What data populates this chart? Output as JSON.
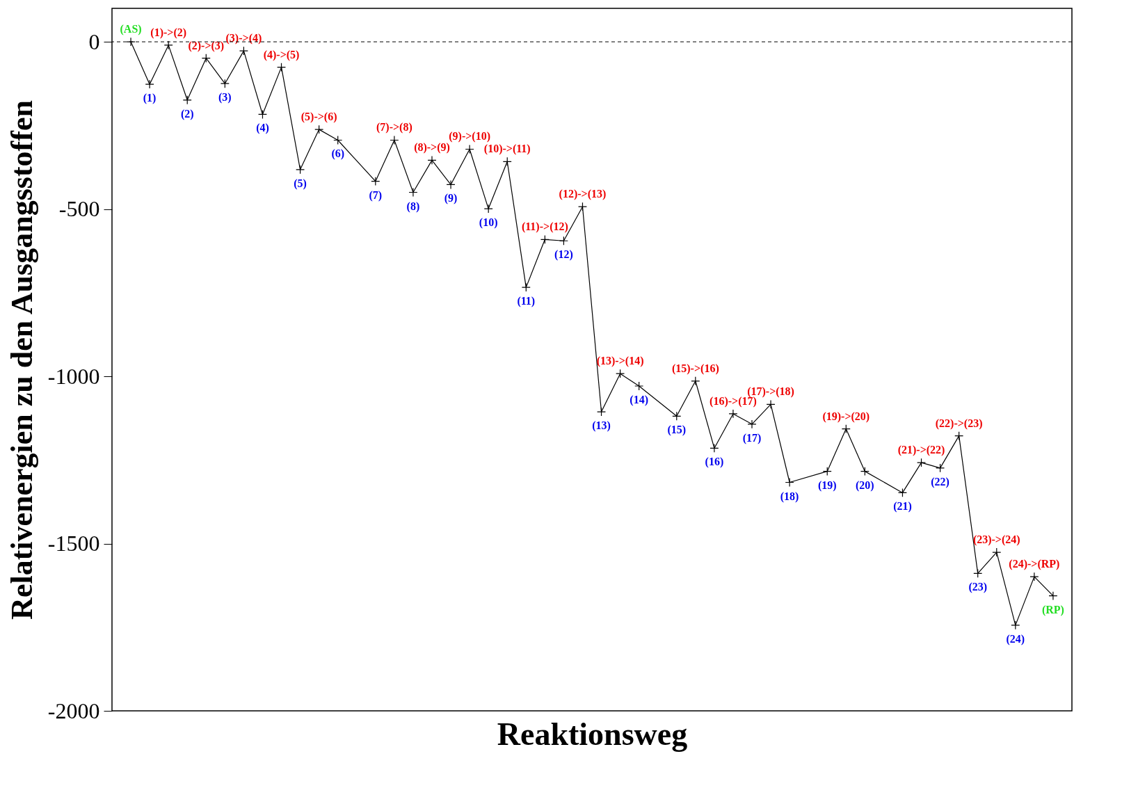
{
  "chart_data": {
    "type": "line",
    "xlabel": "Reaktionsweg",
    "ylabel": "Relativenergien zu den Ausgangsstoffen",
    "categories": [
      null,
      null,
      null,
      null,
      null,
      null,
      null,
      null,
      null,
      null,
      null,
      null,
      null,
      null,
      null,
      null,
      null,
      null,
      null,
      null,
      null,
      null,
      null,
      null,
      null,
      null,
      null,
      null,
      null,
      null,
      null,
      null,
      null,
      null,
      null,
      null,
      null,
      null,
      null,
      null,
      null,
      null,
      null,
      null,
      null,
      null,
      null,
      null,
      null,
      null
    ],
    "ylim": [
      -2000,
      100
    ],
    "yticks": [
      -2000,
      -1500,
      -1000,
      -500,
      0
    ],
    "tick_labels": "y",
    "grid": false,
    "marker": "cross",
    "line_style": "solid",
    "series": [
      {
        "color": "#000000",
        "values": [
          0,
          -127,
          -10,
          -174,
          -49,
          -125,
          -27,
          -217,
          -76,
          -382,
          -262,
          -294,
          null,
          -417,
          -294,
          -450,
          -354,
          -427,
          -321,
          -499,
          -358,
          -734,
          -591,
          -595,
          -493,
          -1106,
          -992,
          -1029,
          null,
          -1119,
          -1014,
          -1215,
          -1112,
          -1143,
          -1084,
          -1317,
          null,
          -1284,
          -1157,
          -1284,
          null,
          -1348,
          -1258,
          -1274,
          -1178,
          -1589,
          -1526,
          -1744,
          -1599,
          -1656
        ]
      }
    ],
    "ref_lines": [
      {
        "axis": "y",
        "value": 0,
        "line_style": "dashed",
        "color": "#000000"
      }
    ],
    "annotations": [
      "(AS)",
      "(1)",
      "(1)->(2)",
      "(2)",
      "(2)->(3)",
      "(3)",
      "(3)->(4)",
      "(4)",
      "(4)->(5)",
      "(5)",
      "(5)->(6)",
      "(6)",
      "(7)",
      "(7)->(8)",
      "(8)",
      "(8)->(9)",
      "(9)",
      "(9)->(10)",
      "(10)",
      "(10)->(11)",
      "(11)",
      "(11)->(12)",
      "(12)",
      "(12)->(13)",
      "(13)",
      "(13)->(14)",
      "(14)",
      "(15)",
      "(15)->(16)",
      "(16)",
      "(16)->(17)",
      "(17)",
      "(17)->(18)",
      "(18)",
      "(19)",
      "(19)->(20)",
      "(20)",
      "(21)",
      "(21)->(22)",
      "(22)",
      "(22)->(23)",
      "(23)",
      "(23)->(24)",
      "(24)",
      "(24)->(RP)",
      "(RP)"
    ]
  }
}
